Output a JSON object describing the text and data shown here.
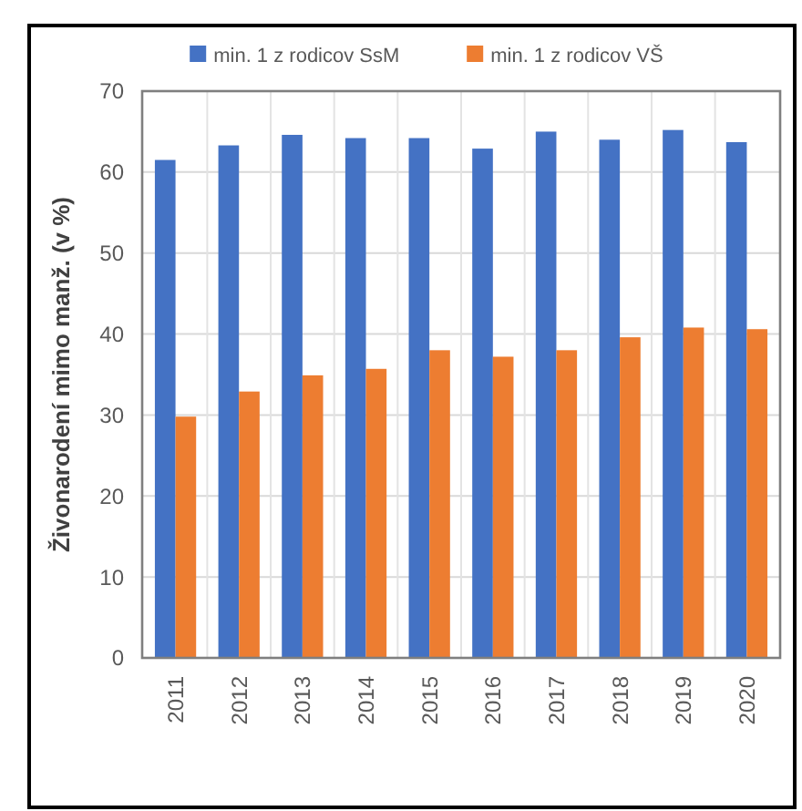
{
  "chart_data": {
    "type": "bar",
    "ylabel": "Živonarodení mimo manž. (v %)",
    "categories": [
      "2011",
      "2012",
      "2013",
      "2014",
      "2015",
      "2016",
      "2017",
      "2018",
      "2019",
      "2020"
    ],
    "series": [
      {
        "name": "min. 1 z rodicov SsM",
        "color": "#4472c4",
        "values": [
          61.5,
          63.3,
          64.6,
          64.2,
          64.2,
          62.9,
          65.0,
          64.0,
          65.2,
          63.7
        ]
      },
      {
        "name": "min. 1 z rodicov VŠ",
        "color": "#ed7d31",
        "values": [
          29.8,
          32.9,
          34.9,
          35.7,
          38.0,
          37.2,
          38.0,
          39.6,
          40.8,
          40.6
        ]
      }
    ],
    "ylim": [
      0,
      70
    ],
    "yticks": [
      0,
      10,
      20,
      30,
      40,
      50,
      60,
      70
    ],
    "grid": true,
    "legend": "top"
  }
}
